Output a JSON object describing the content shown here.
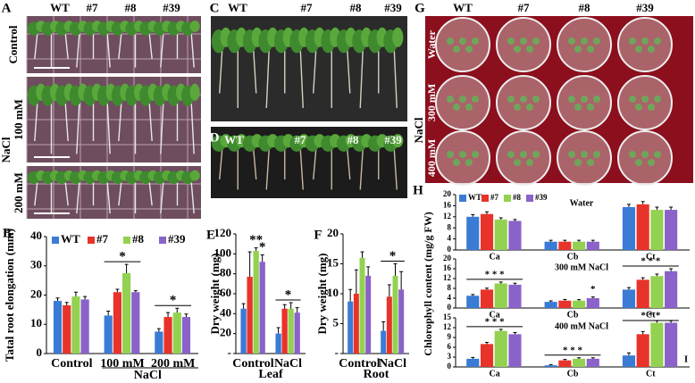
{
  "photos": {
    "A": {
      "panel": "A",
      "columns": [
        "WT",
        "#7",
        "#8",
        "#39"
      ],
      "rows": [
        "Control",
        "100 mM",
        "200 mM"
      ],
      "group": "NaCl"
    },
    "C": {
      "panel": "C",
      "columns": [
        "WT",
        "#7",
        "#8",
        "#39"
      ]
    },
    "D": {
      "panel": "D",
      "columns": [
        "WT",
        "#7",
        "#8",
        "#39"
      ]
    },
    "G": {
      "panel": "G",
      "columns": [
        "WT",
        "#7",
        "#8",
        "#39"
      ],
      "rows": [
        "Water",
        "300 mM",
        "400 mM"
      ],
      "group": "NaCl"
    }
  },
  "chart_data": [
    {
      "type": "bar",
      "panel": "B",
      "ylabel": "Tatal root elongation (mm)",
      "categories": [
        "Control",
        "100 mM",
        "200 mM"
      ],
      "group_label": "NaCl",
      "ylim": [
        0,
        40
      ],
      "yticks": [
        0,
        10,
        20,
        30,
        40
      ],
      "legend": "top",
      "series": [
        {
          "name": "WT",
          "color": "#3a7bd5",
          "values": [
            18,
            13,
            7.5
          ],
          "errors": [
            1,
            1.5,
            1
          ]
        },
        {
          "name": "#7",
          "color": "#e8332a",
          "values": [
            16.5,
            21,
            12.5
          ],
          "errors": [
            1,
            1,
            1.5
          ]
        },
        {
          "name": "#8",
          "color": "#93d150",
          "values": [
            19.5,
            27.5,
            14
          ],
          "errors": [
            1.5,
            3,
            1.5
          ]
        },
        {
          "name": "#39",
          "color": "#8a62c9",
          "values": [
            18.5,
            21,
            12.5
          ],
          "errors": [
            1,
            0.5,
            1
          ]
        }
      ],
      "annotations": [
        "*",
        "*"
      ]
    },
    {
      "type": "bar",
      "panel": "E",
      "ylabel": "Dry weight (mg)",
      "xlabel": "Leaf",
      "categories": [
        "Control",
        "NaCl"
      ],
      "ylim": [
        0,
        120
      ],
      "yticks": [
        {
          "value": 0,
          "label": "-"
        },
        20,
        40,
        60,
        80,
        100,
        120
      ],
      "series": [
        {
          "color": "#3a7bd5",
          "values": [
            45,
            20
          ],
          "errors": [
            5,
            6
          ]
        },
        {
          "color": "#e8332a",
          "values": [
            77,
            45
          ],
          "errors": [
            25,
            4
          ]
        },
        {
          "color": "#93d150",
          "values": [
            103,
            45
          ],
          "errors": [
            3,
            6
          ]
        },
        {
          "color": "#8a62c9",
          "values": [
            92,
            41
          ],
          "errors": [
            7,
            5
          ]
        }
      ],
      "annotations": [
        "**",
        "*",
        "*"
      ]
    },
    {
      "type": "bar",
      "panel": "F",
      "ylabel": "Dry weight (mg)",
      "xlabel": "Root",
      "categories": [
        "Control",
        "NaCl"
      ],
      "ylim": [
        0,
        20
      ],
      "yticks": [
        {
          "value": 0,
          "label": "-"
        },
        5,
        10,
        15,
        20
      ],
      "series": [
        {
          "color": "#3a7bd5",
          "values": [
            8.7,
            3.8
          ],
          "errors": [
            2,
            1.5
          ]
        },
        {
          "color": "#e8332a",
          "values": [
            10,
            9.5
          ],
          "errors": [
            4,
            2
          ]
        },
        {
          "color": "#93d150",
          "values": [
            16,
            13
          ],
          "errors": [
            1,
            2
          ]
        },
        {
          "color": "#8a62c9",
          "values": [
            13,
            10.7
          ],
          "errors": [
            1.5,
            3
          ]
        }
      ],
      "annotations": [
        "*"
      ]
    },
    {
      "type": "bar",
      "panel": "H",
      "ylabel": "Chlorophyll content (mg/g FW)",
      "title": "Water",
      "categories": [
        "Ca",
        "Cb",
        "Ct"
      ],
      "ylim": [
        0,
        20
      ],
      "yticks": [
        0,
        4,
        8,
        12,
        16,
        20
      ],
      "legend": "top-left",
      "series": [
        {
          "name": "WT",
          "color": "#3a7bd5",
          "values": [
            12,
            3,
            15.5
          ],
          "errors": [
            0.8,
            0.5,
            1
          ]
        },
        {
          "name": "#7",
          "color": "#e8332a",
          "values": [
            13,
            3,
            16.5
          ],
          "errors": [
            0.8,
            0.5,
            1
          ]
        },
        {
          "name": "#8",
          "color": "#93d150",
          "values": [
            11,
            3,
            14.5
          ],
          "errors": [
            0.6,
            0.5,
            1
          ]
        },
        {
          "name": "#39",
          "color": "#8a62c9",
          "values": [
            10.5,
            3,
            14.5
          ],
          "errors": [
            0.5,
            0.5,
            1
          ]
        }
      ]
    },
    {
      "type": "bar",
      "title": "300 mM NaCl",
      "categories": [
        "Ca",
        "Cb",
        "Ct"
      ],
      "ylim": [
        0,
        20
      ],
      "yticks": [
        0,
        4,
        8,
        12,
        16,
        20
      ],
      "series": [
        {
          "color": "#3a7bd5",
          "values": [
            5,
            2.5,
            7.5
          ],
          "errors": [
            0.5,
            0.4,
            0.8
          ]
        },
        {
          "color": "#e8332a",
          "values": [
            7.5,
            3,
            11.5
          ],
          "errors": [
            0.6,
            0.5,
            0.8
          ]
        },
        {
          "color": "#93d150",
          "values": [
            10,
            3,
            13
          ],
          "errors": [
            0.6,
            0.4,
            0.8
          ]
        },
        {
          "color": "#8a62c9",
          "values": [
            9.5,
            4,
            15
          ],
          "errors": [
            0.6,
            0.5,
            1
          ]
        }
      ],
      "annotations": [
        "* * *",
        "*",
        "* * *"
      ]
    },
    {
      "type": "bar",
      "title": "400 mM NaCl",
      "categories": [
        "Ca",
        "Cb",
        "Ct"
      ],
      "corner_label": "I",
      "ylim": [
        0,
        15
      ],
      "yticks": [
        0,
        3,
        6,
        9,
        12,
        15
      ],
      "series": [
        {
          "color": "#3a7bd5",
          "values": [
            2.5,
            0.5,
            3.5
          ],
          "errors": [
            0.4,
            0.2,
            0.8
          ]
        },
        {
          "color": "#e8332a",
          "values": [
            7,
            2,
            10
          ],
          "errors": [
            0.5,
            0.3,
            0.8
          ]
        },
        {
          "color": "#93d150",
          "values": [
            11,
            2.5,
            13.5
          ],
          "errors": [
            0.5,
            0.3,
            0.6
          ]
        },
        {
          "color": "#8a62c9",
          "values": [
            10,
            2.5,
            13.5
          ],
          "errors": [
            0.5,
            0.3,
            0.6
          ]
        }
      ],
      "annotations": [
        "* * *",
        "* * *",
        "* * *"
      ]
    }
  ]
}
